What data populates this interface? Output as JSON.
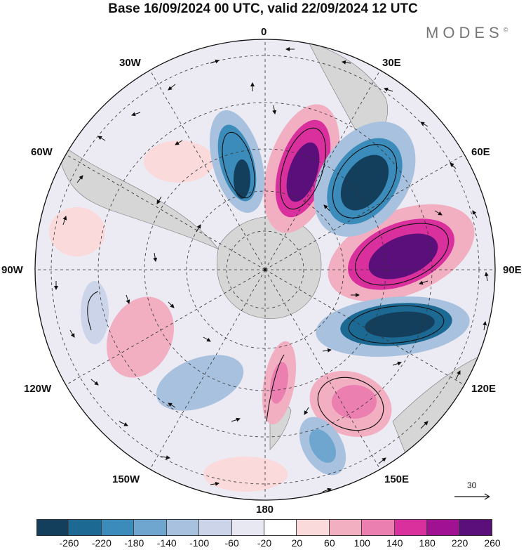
{
  "title": "Base 16/09/2024 00 UTC, valid 22/09/2024 12 UTC",
  "brand": "MODES",
  "brand_mark": "©",
  "map": {
    "projection": "south-polar-stereographic",
    "longitude_labels": {
      "top": "0",
      "tr30": "30E",
      "tr60": "60E",
      "right": "90E",
      "br120": "120E",
      "br150": "150E",
      "bottom": "180",
      "bl150": "150W",
      "bl120": "120W",
      "left": "90W",
      "tl60": "60W",
      "tl30": "30W"
    },
    "colors": {
      "land": "#d6d6d6",
      "positive_strong": "#560a6b",
      "negative_strong": "#10405f"
    }
  },
  "reference_vector": {
    "value": "30"
  },
  "colorbar": {
    "colors": [
      "#133e5c",
      "#1c6a94",
      "#3b8bbb",
      "#6ea6cf",
      "#a7c1df",
      "#ccd4e9",
      "#e8e8f2",
      "#ffffff",
      "#fadada",
      "#f2afc2",
      "#ea7fb0",
      "#d9309d",
      "#a11292",
      "#5a0f7a"
    ],
    "tick_labels": [
      "-260",
      "-220",
      "-180",
      "-140",
      "-100",
      "-60",
      "-20",
      "20",
      "60",
      "100",
      "140",
      "180",
      "220",
      "260"
    ]
  }
}
